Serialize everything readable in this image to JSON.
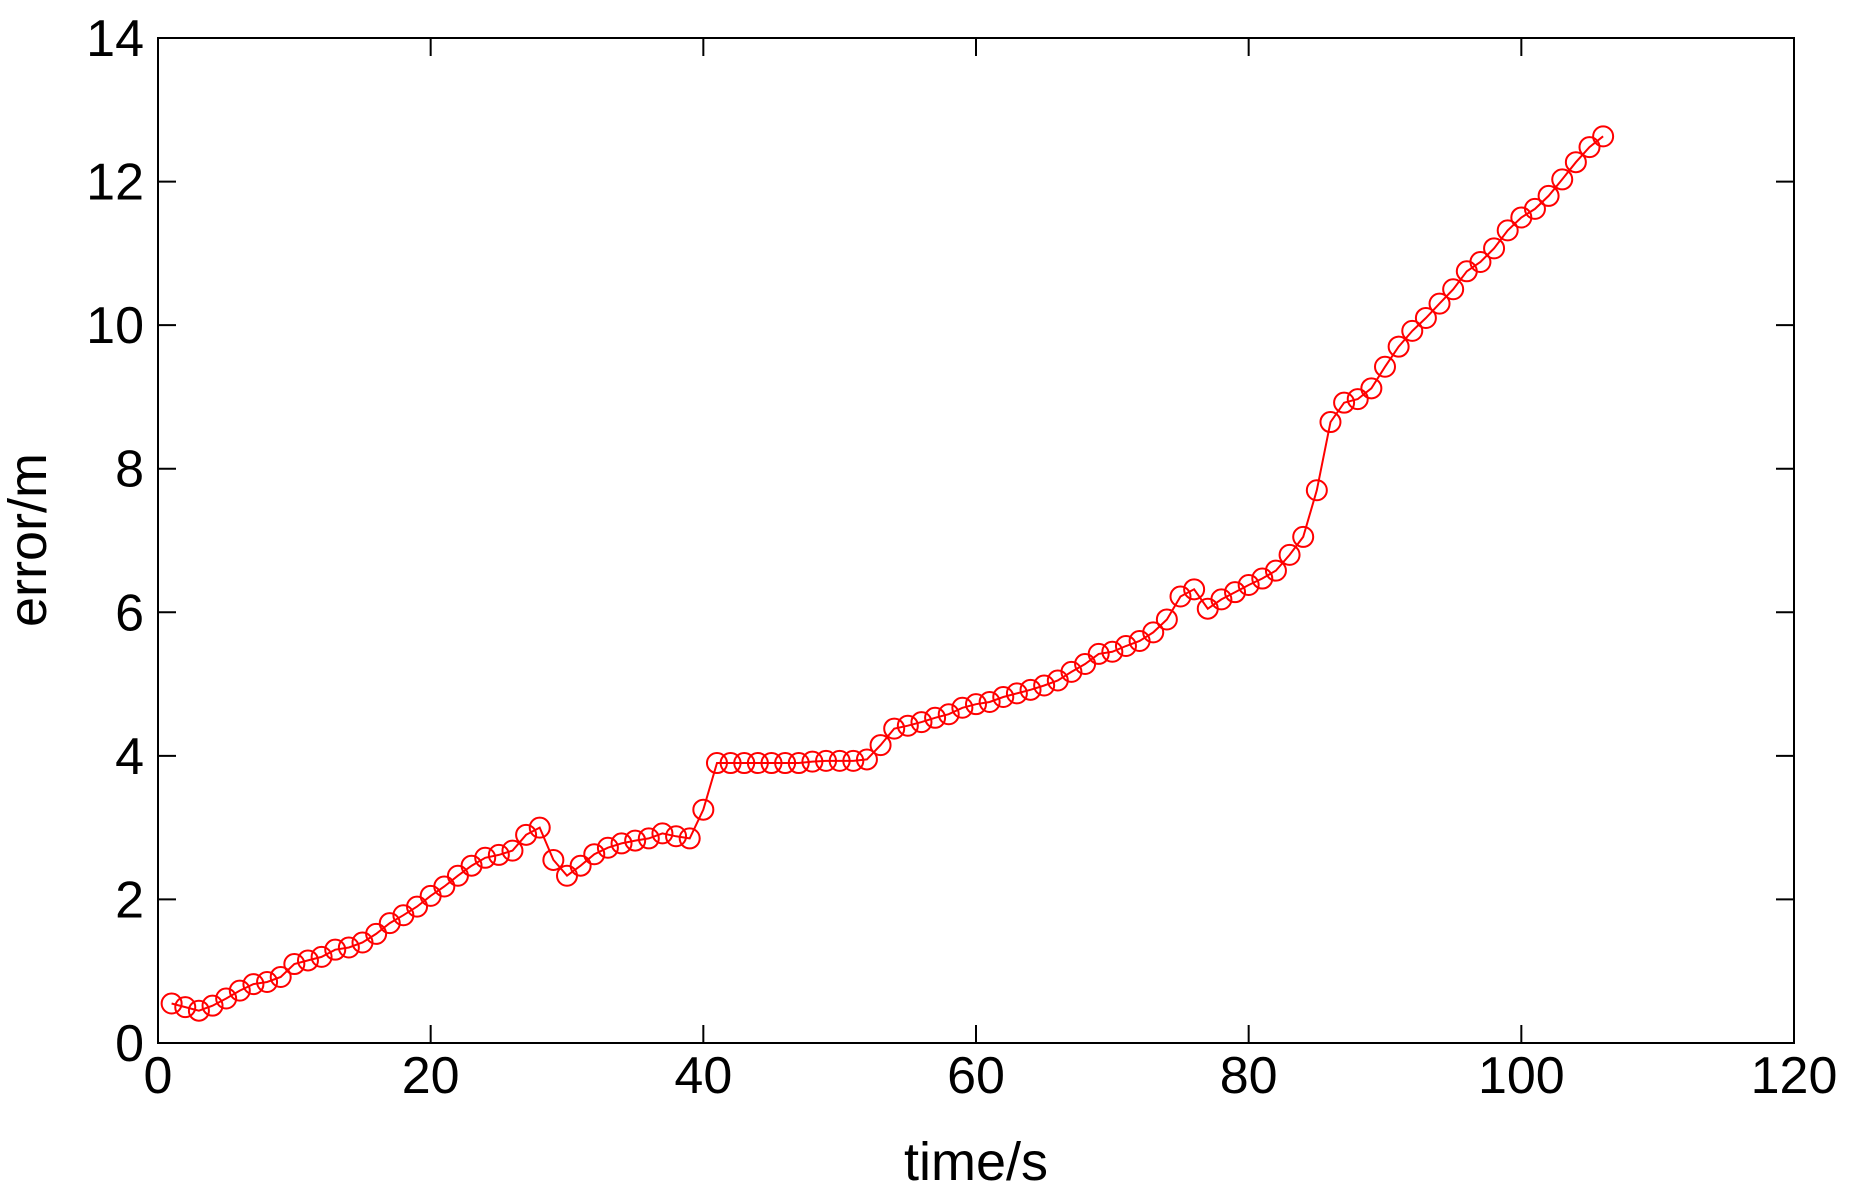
{
  "chart_data": {
    "type": "line",
    "title": "",
    "xlabel": "time/s",
    "ylabel": "error/m",
    "xlim": [
      0,
      120
    ],
    "ylim": [
      0,
      14
    ],
    "xticks": [
      0,
      20,
      40,
      60,
      80,
      100,
      120
    ],
    "yticks": [
      0,
      2,
      4,
      6,
      8,
      10,
      12,
      14
    ],
    "grid": false,
    "legend": "none",
    "series": [
      {
        "color": "#ff0000",
        "marker": "circle",
        "x": [
          1,
          2,
          3,
          4,
          5,
          6,
          7,
          8,
          9,
          10,
          11,
          12,
          13,
          14,
          15,
          16,
          17,
          18,
          19,
          20,
          21,
          22,
          23,
          24,
          25,
          26,
          27,
          28,
          29,
          30,
          31,
          32,
          33,
          34,
          35,
          36,
          37,
          38,
          39,
          40,
          41,
          42,
          43,
          44,
          45,
          46,
          47,
          48,
          49,
          50,
          51,
          52,
          53,
          54,
          55,
          56,
          57,
          58,
          59,
          60,
          61,
          62,
          63,
          64,
          65,
          66,
          67,
          68,
          69,
          70,
          71,
          72,
          73,
          74,
          75,
          76,
          77,
          78,
          79,
          80,
          81,
          82,
          83,
          84,
          85,
          86,
          87,
          88,
          89,
          90,
          91,
          92,
          93,
          94,
          95,
          96,
          97,
          98,
          99,
          100,
          101,
          102,
          103,
          104,
          105,
          106
        ],
        "y": [
          0.55,
          0.5,
          0.45,
          0.52,
          0.62,
          0.73,
          0.82,
          0.85,
          0.92,
          1.1,
          1.15,
          1.2,
          1.3,
          1.33,
          1.4,
          1.52,
          1.67,
          1.78,
          1.9,
          2.05,
          2.18,
          2.33,
          2.47,
          2.58,
          2.62,
          2.68,
          2.9,
          3.0,
          2.55,
          2.33,
          2.47,
          2.63,
          2.72,
          2.78,
          2.82,
          2.85,
          2.92,
          2.88,
          2.85,
          3.25,
          3.9,
          3.9,
          3.9,
          3.9,
          3.9,
          3.9,
          3.9,
          3.92,
          3.93,
          3.93,
          3.93,
          3.95,
          4.15,
          4.38,
          4.42,
          4.47,
          4.53,
          4.58,
          4.67,
          4.72,
          4.75,
          4.82,
          4.87,
          4.92,
          4.98,
          5.05,
          5.17,
          5.28,
          5.42,
          5.45,
          5.53,
          5.6,
          5.72,
          5.9,
          6.22,
          6.32,
          6.05,
          6.18,
          6.28,
          6.38,
          6.47,
          6.58,
          6.8,
          7.05,
          7.7,
          8.65,
          8.92,
          8.97,
          9.12,
          9.42,
          9.7,
          9.92,
          10.1,
          10.3,
          10.5,
          10.75,
          10.88,
          11.07,
          11.32,
          11.5,
          11.62,
          11.8,
          12.03,
          12.27,
          12.48,
          12.63
        ]
      }
    ]
  }
}
